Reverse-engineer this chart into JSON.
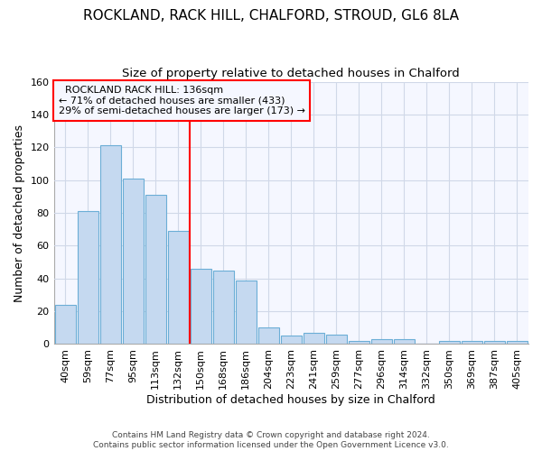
{
  "title1": "ROCKLAND, RACK HILL, CHALFORD, STROUD, GL6 8LA",
  "title2": "Size of property relative to detached houses in Chalford",
  "xlabel": "Distribution of detached houses by size in Chalford",
  "ylabel": "Number of detached properties",
  "categories": [
    "40sqm",
    "59sqm",
    "77sqm",
    "95sqm",
    "113sqm",
    "132sqm",
    "150sqm",
    "168sqm",
    "186sqm",
    "204sqm",
    "223sqm",
    "241sqm",
    "259sqm",
    "277sqm",
    "296sqm",
    "314sqm",
    "332sqm",
    "350sqm",
    "369sqm",
    "387sqm",
    "405sqm"
  ],
  "values": [
    24,
    81,
    121,
    101,
    91,
    69,
    46,
    45,
    39,
    10,
    5,
    7,
    6,
    2,
    3,
    3,
    0,
    2,
    2,
    2,
    2
  ],
  "bar_color": "#c5d9f0",
  "bar_edge_color": "#6baed6",
  "ylim": [
    0,
    160
  ],
  "yticks": [
    0,
    20,
    40,
    60,
    80,
    100,
    120,
    140,
    160
  ],
  "property_size_label": "ROCKLAND RACK HILL: 136sqm",
  "smaller_pct": 71,
  "smaller_count": 433,
  "larger_pct": 29,
  "larger_count": 173,
  "vline_bin_index": 6.0,
  "footnote": "Contains HM Land Registry data © Crown copyright and database right 2024.\nContains public sector information licensed under the Open Government Licence v3.0.",
  "fig_bg_color": "#ffffff",
  "plot_bg_color": "#f5f7ff",
  "grid_color": "#d0d8e8",
  "title_fontsize": 11,
  "subtitle_fontsize": 9.5,
  "tick_fontsize": 8,
  "ylabel_fontsize": 9,
  "xlabel_fontsize": 9,
  "footnote_fontsize": 6.5
}
